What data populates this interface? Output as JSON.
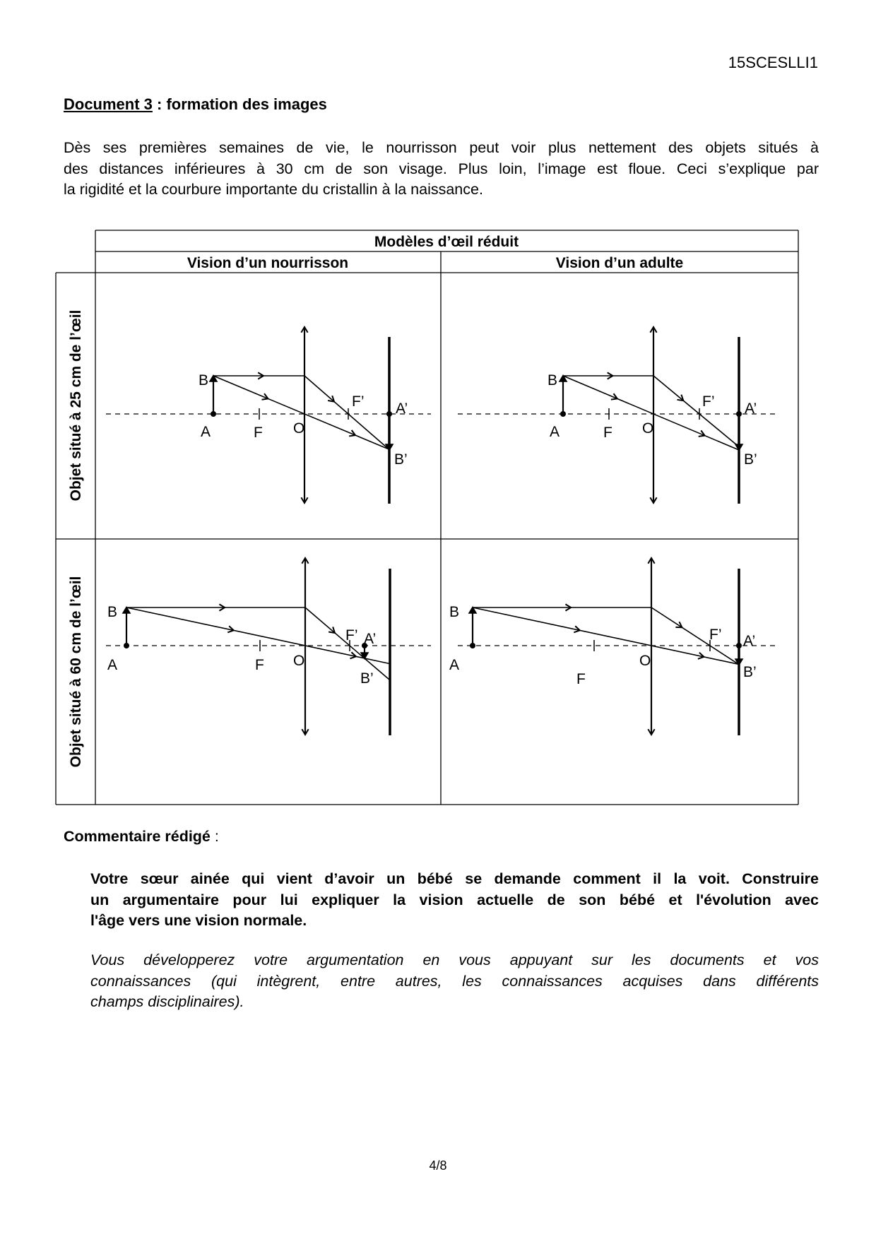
{
  "header": {
    "code": "15SCESLLI1"
  },
  "document": {
    "title_underlined": "Document 3",
    "title_rest": " : formation des images",
    "intro_lines": [
      "Dès ses premières semaines de vie, le nourrisson peut voir plus nettement des objets situés à",
      "des distances inférieures à 30 cm de son visage. Plus loin, l’image est floue. Ceci s’explique par",
      "la rigidité et la courbure importante du cristallin à la naissance."
    ]
  },
  "table": {
    "title": "Modèles d’œil réduit",
    "col_infant": "Vision d’un nourrisson",
    "col_adult": "Vision d’un adulte",
    "row_25": "Objet situé à 25 cm de l’œil",
    "row_60": "Objet situé à 60 cm de l’œil",
    "labels": {
      "A": "A",
      "B": "B",
      "F": "F",
      "O": "O",
      "Fp": "F’",
      "Ap": "A’",
      "Bp": "B’"
    }
  },
  "comment": {
    "label": "Commentaire rédigé",
    "colon": " :",
    "task_lines": [
      "Votre sœur ainée qui vient d’avoir un bébé se demande comment il la voit. Construire",
      "un argumentaire pour lui expliquer la vision actuelle de son bébé et l'évolution avec",
      "l'âge vers une vision normale."
    ],
    "note_lines": [
      "Vous développerez votre argumentation en vous appuyant sur les documents et vos",
      "connaissances (qui intègrent, entre autres, les connaissances acquises dans différents",
      "champs disciplinaires)."
    ]
  },
  "footer": {
    "page": "4/8"
  }
}
